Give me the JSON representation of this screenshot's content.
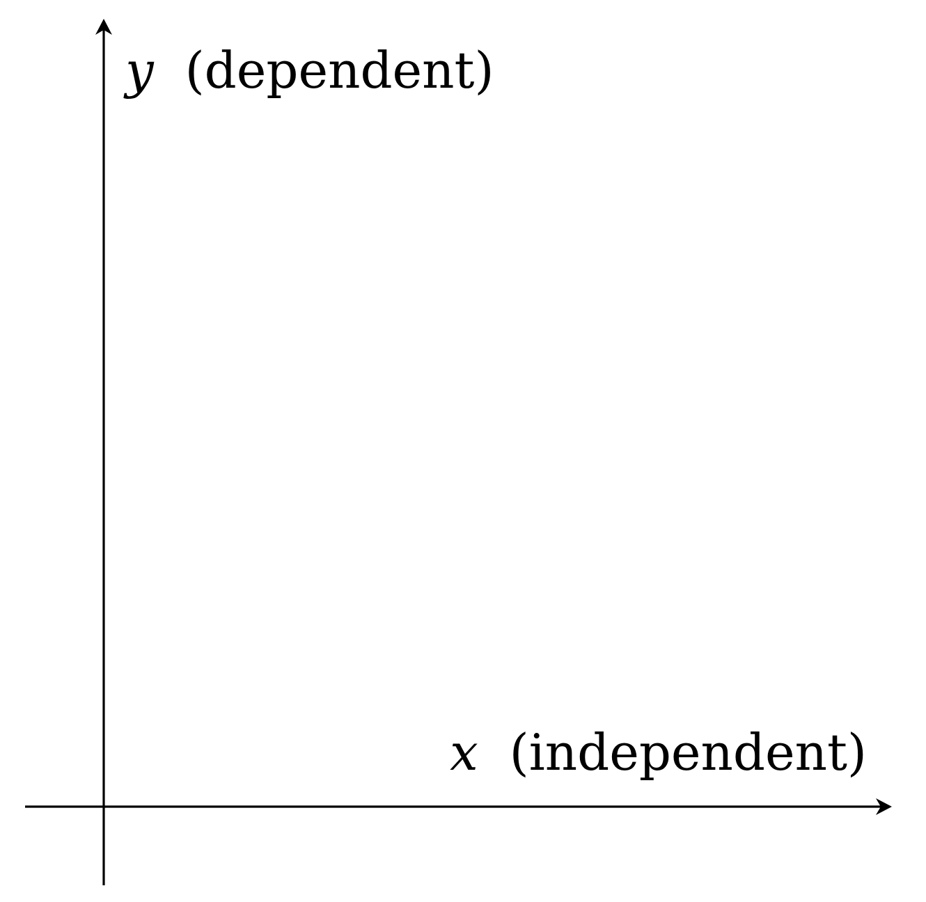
{
  "diagram": {
    "y_axis": {
      "symbol": "y",
      "description": "(dependent)"
    },
    "x_axis": {
      "symbol": "x",
      "description": "(independent)"
    },
    "colors": {
      "axis": "#000000",
      "background": "#ffffff"
    }
  }
}
